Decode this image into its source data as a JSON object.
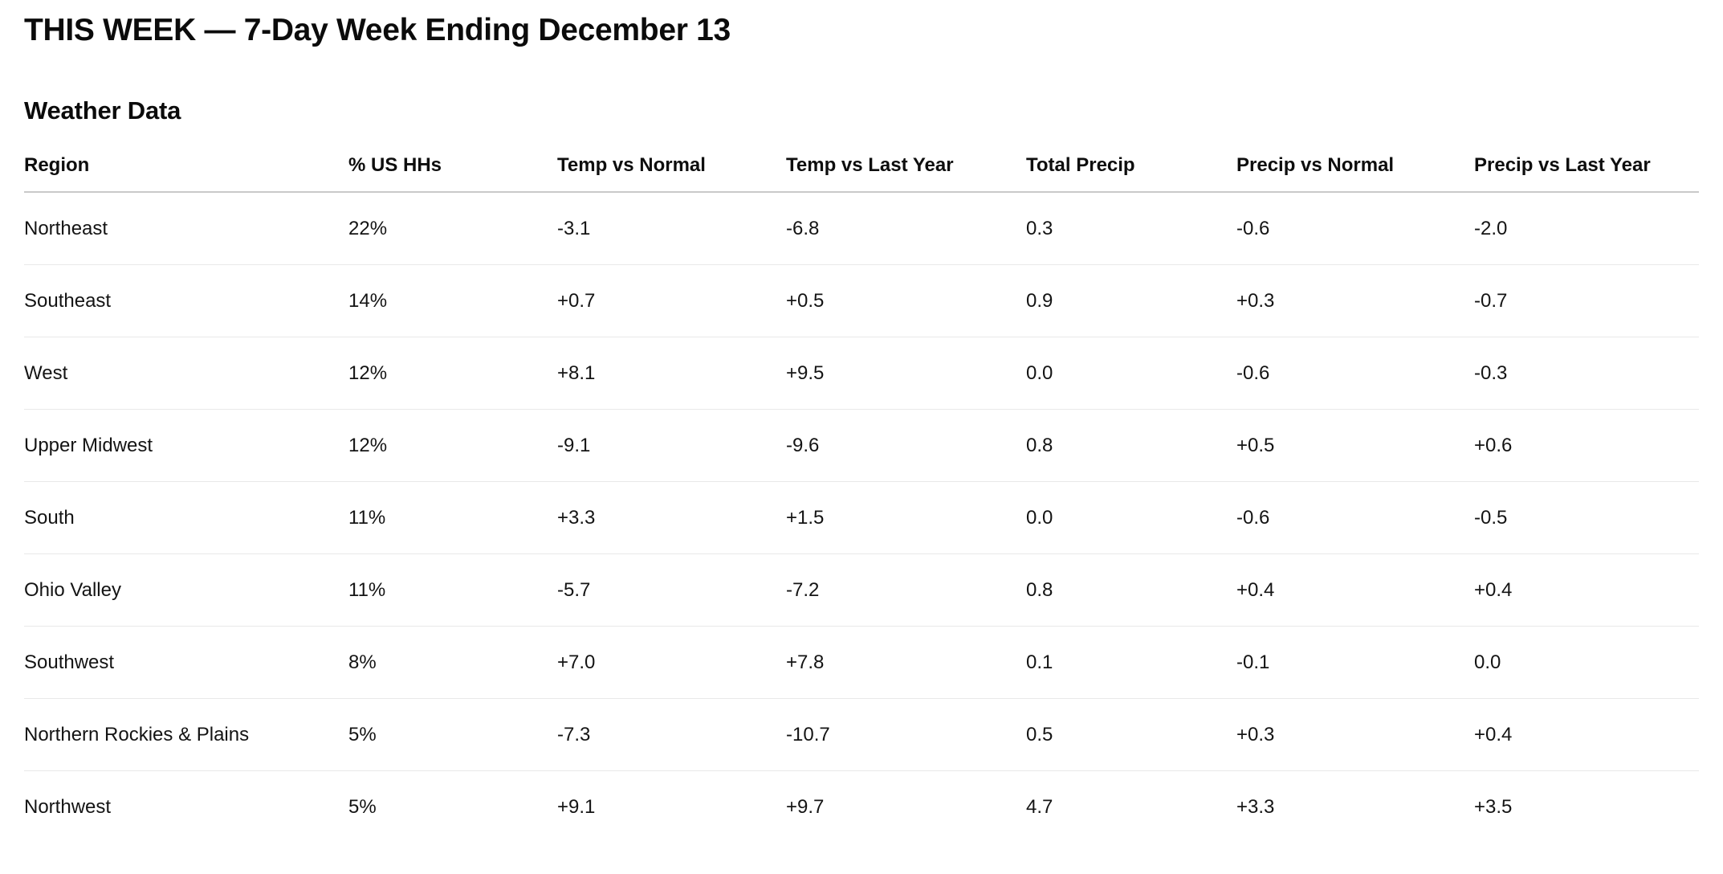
{
  "page": {
    "title": "THIS WEEK — 7-Day Week Ending December 13",
    "section_title": "Weather Data"
  },
  "colors": {
    "background": "#ffffff",
    "text": "#111111",
    "header_divider": "#c9c9c9",
    "row_divider": "#e9e9e9"
  },
  "chart_data": {
    "type": "table",
    "title": "Weather Data",
    "columns": [
      "Region",
      "% US HHs",
      "Temp vs Normal",
      "Temp vs Last Year",
      "Total Precip",
      "Precip vs Normal",
      "Precip vs Last Year"
    ],
    "rows": [
      [
        "Northeast",
        "22%",
        "-3.1",
        "-6.8",
        "0.3",
        "-0.6",
        "-2.0"
      ],
      [
        "Southeast",
        "14%",
        "+0.7",
        "+0.5",
        "0.9",
        "+0.3",
        "-0.7"
      ],
      [
        "West",
        "12%",
        "+8.1",
        "+9.5",
        "0.0",
        "-0.6",
        "-0.3"
      ],
      [
        "Upper Midwest",
        "12%",
        "-9.1",
        "-9.6",
        "0.8",
        "+0.5",
        "+0.6"
      ],
      [
        "South",
        "11%",
        "+3.3",
        "+1.5",
        "0.0",
        "-0.6",
        "-0.5"
      ],
      [
        "Ohio Valley",
        "11%",
        "-5.7",
        "-7.2",
        "0.8",
        "+0.4",
        "+0.4"
      ],
      [
        "Southwest",
        "8%",
        "+7.0",
        "+7.8",
        "0.1",
        "-0.1",
        "0.0"
      ],
      [
        "Northern Rockies & Plains",
        "5%",
        "-7.3",
        "-10.7",
        "0.5",
        "+0.3",
        "+0.4"
      ],
      [
        "Northwest",
        "5%",
        "+9.1",
        "+9.7",
        "4.7",
        "+3.3",
        "+3.5"
      ]
    ]
  }
}
